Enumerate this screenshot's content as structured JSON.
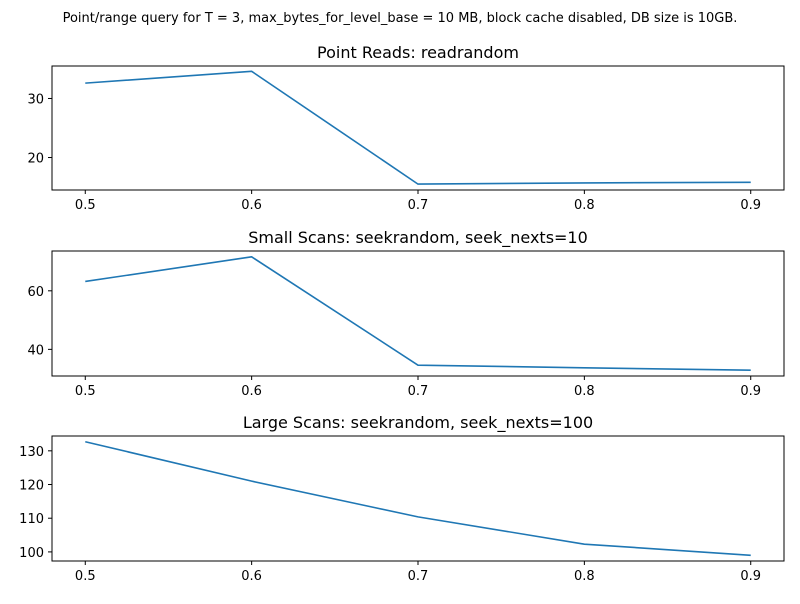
{
  "figure": {
    "suptitle": "Point/range query for T = 3, max_bytes_for_level_base = 10 MB, block cache disabled, DB size is 10GB."
  },
  "chart_data": [
    {
      "type": "line",
      "title": "Point Reads: readrandom",
      "xlabel": "",
      "ylabel": "",
      "x": [
        0.5,
        0.6,
        0.7,
        0.8,
        0.9
      ],
      "series": [
        {
          "values": [
            32.6,
            34.6,
            15.5,
            15.7,
            15.8
          ]
        }
      ],
      "xlim": [
        0.48,
        0.92
      ],
      "ylim": [
        14.5,
        35.5
      ],
      "xticks": [
        0.5,
        0.6,
        0.7,
        0.8,
        0.9
      ],
      "yticks": [
        20,
        30
      ],
      "grid": false,
      "color": "#1f77b4"
    },
    {
      "type": "line",
      "title": "Small Scans: seekrandom, seek_nexts=10",
      "xlabel": "",
      "ylabel": "",
      "x": [
        0.5,
        0.6,
        0.7,
        0.8,
        0.9
      ],
      "series": [
        {
          "values": [
            63.2,
            71.6,
            34.6,
            33.7,
            32.9
          ]
        }
      ],
      "xlim": [
        0.48,
        0.92
      ],
      "ylim": [
        30.9,
        73.6
      ],
      "xticks": [
        0.5,
        0.6,
        0.7,
        0.8,
        0.9
      ],
      "yticks": [
        40,
        60
      ],
      "grid": false,
      "color": "#1f77b4"
    },
    {
      "type": "line",
      "title": "Large Scans: seekrandom, seek_nexts=100",
      "xlabel": "",
      "ylabel": "",
      "x": [
        0.5,
        0.6,
        0.7,
        0.8,
        0.9
      ],
      "series": [
        {
          "values": [
            132.7,
            121.0,
            110.4,
            102.3,
            99.0
          ]
        }
      ],
      "xlim": [
        0.48,
        0.92
      ],
      "ylim": [
        97.3,
        134.4
      ],
      "xticks": [
        0.5,
        0.6,
        0.7,
        0.8,
        0.9
      ],
      "yticks": [
        100,
        110,
        120,
        130
      ],
      "grid": false,
      "color": "#1f77b4"
    }
  ]
}
